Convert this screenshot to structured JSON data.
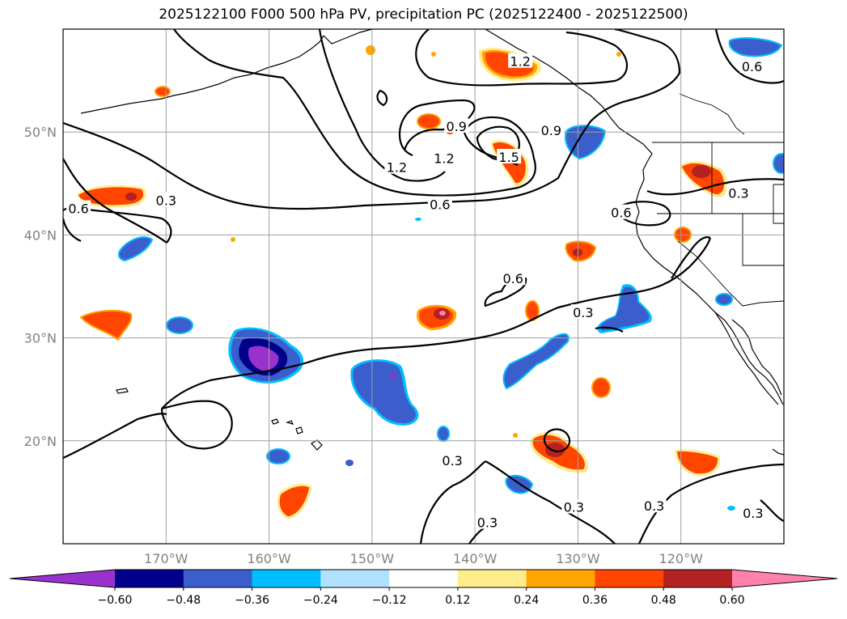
{
  "title": "2025122100 F000 500 hPa PV, precipitation PC (2025122400 - 2025122500)",
  "map": {
    "lon_range": [
      -180,
      -110
    ],
    "lat_range": [
      10,
      60
    ],
    "lat_labels": [
      {
        "lat": 50,
        "text": "50°N"
      },
      {
        "lat": 40,
        "text": "40°N"
      },
      {
        "lat": 30,
        "text": "30°N"
      },
      {
        "lat": 20,
        "text": "20°N"
      }
    ],
    "lon_labels": [
      {
        "lon": -170,
        "text": "170°W"
      },
      {
        "lon": -160,
        "text": "160°W"
      },
      {
        "lon": -150,
        "text": "150°W"
      },
      {
        "lon": -140,
        "text": "140°W"
      },
      {
        "lon": -130,
        "text": "130°W"
      },
      {
        "lon": -120,
        "text": "120°W"
      }
    ],
    "grid": true,
    "contour_labels": [
      {
        "text": "0.3",
        "lon": -170.0,
        "lat": 43.3
      },
      {
        "text": "0.6",
        "lon": -178.5,
        "lat": 42.5
      },
      {
        "text": "0.6",
        "lon": -143.4,
        "lat": 42.9
      },
      {
        "text": "1.2",
        "lon": -147.6,
        "lat": 46.5
      },
      {
        "text": "1.2",
        "lon": -143.0,
        "lat": 47.4
      },
      {
        "text": "0.9",
        "lon": -141.8,
        "lat": 50.5
      },
      {
        "text": "1.5",
        "lon": -136.7,
        "lat": 47.5
      },
      {
        "text": "0.9",
        "lon": -132.6,
        "lat": 50.1
      },
      {
        "text": "1.2",
        "lon": -135.6,
        "lat": 56.8
      },
      {
        "text": "0.6",
        "lon": -113.1,
        "lat": 56.3
      },
      {
        "text": "0.3",
        "lon": -114.4,
        "lat": 44.0
      },
      {
        "text": "0.6",
        "lon": -125.8,
        "lat": 42.1
      },
      {
        "text": "0.6",
        "lon": -136.3,
        "lat": 35.7
      },
      {
        "text": "0.3",
        "lon": -129.5,
        "lat": 32.4
      },
      {
        "text": "0.3",
        "lon": -142.2,
        "lat": 18.0
      },
      {
        "text": "0.3",
        "lon": -138.8,
        "lat": 12.0
      },
      {
        "text": "0.3",
        "lon": -130.4,
        "lat": 13.5
      },
      {
        "text": "0.3",
        "lon": -122.6,
        "lat": 13.6
      },
      {
        "text": "0.3",
        "lon": -113.0,
        "lat": 12.9
      }
    ]
  },
  "colorbar": {
    "ticks": [
      "−0.60",
      "−0.48",
      "−0.36",
      "−0.24",
      "−0.12",
      "0.12",
      "0.24",
      "0.36",
      "0.48",
      "0.60"
    ],
    "colors": [
      "#9932cc",
      "#00008b",
      "#3a5fcd",
      "#00bfff",
      "#b0e2ff",
      "#ffffff",
      "#ffec8b",
      "#ffa500",
      "#ff4500",
      "#b22222",
      "#ff82ab"
    ]
  }
}
